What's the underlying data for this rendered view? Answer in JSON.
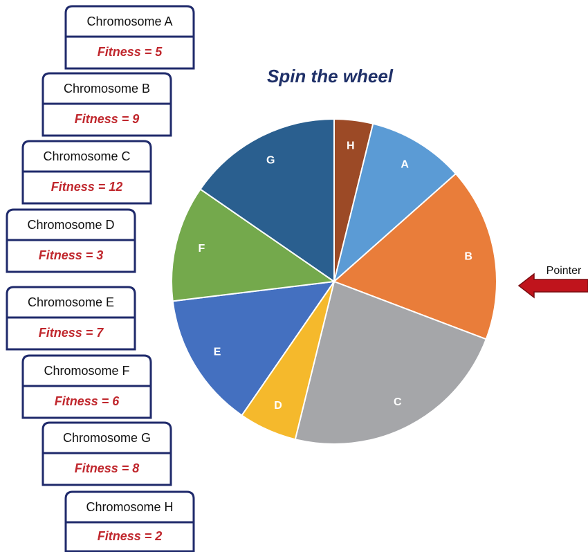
{
  "cards": [
    {
      "title": "Chromosome A",
      "fitness": "Fitness = 5"
    },
    {
      "title": "Chromosome B",
      "fitness": "Fitness = 9"
    },
    {
      "title": "Chromosome C",
      "fitness": "Fitness = 12"
    },
    {
      "title": "Chromosome D",
      "fitness": "Fitness = 3"
    },
    {
      "title": "Chromosome E",
      "fitness": "Fitness = 7"
    },
    {
      "title": "Chromosome F",
      "fitness": "Fitness = 6"
    },
    {
      "title": "Chromosome G",
      "fitness": "Fitness = 8"
    },
    {
      "title": "Chromosome H",
      "fitness": "Fitness = 2"
    }
  ],
  "pointer": "Pointer",
  "chart_data": {
    "type": "pie",
    "title": "Spin the wheel",
    "categories": [
      "H",
      "A",
      "B",
      "C",
      "D",
      "E",
      "F",
      "G"
    ],
    "values": [
      2,
      5,
      9,
      12,
      3,
      7,
      6,
      8
    ],
    "colors": [
      "#9c4a26",
      "#5b9bd5",
      "#e97d3a",
      "#a5a6a9",
      "#f5b92c",
      "#4470c0",
      "#74a94c",
      "#2a5f8f"
    ]
  }
}
